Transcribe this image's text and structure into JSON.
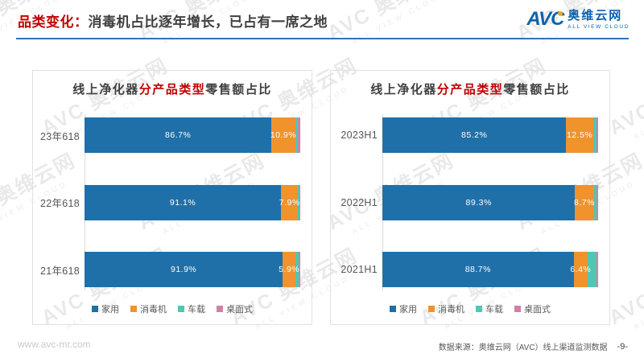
{
  "page": {
    "header": {
      "tag": "品类变化：",
      "title": "消毒机占比逐年增长，已占有一席之地",
      "tag_color": "#C00000",
      "underline_color": "#2E74B5"
    },
    "logo": {
      "acronym": "AVC",
      "cn": "奥维云网",
      "en": "ALL VIEW CLOUD",
      "blue": "#0E62AD",
      "orange": "#F5A623"
    },
    "watermark": {
      "line1": "AVC 奥维云网",
      "line2": "ALL VIEW CLOUD"
    },
    "footer": {
      "website": "www.avc-mr.com",
      "source": "数据来源：奥维云网（AVC）线上渠道监测数据",
      "page_number": "-9-"
    }
  },
  "chart_data": [
    {
      "type": "bar",
      "orientation": "horizontal-stacked",
      "title": "线上净化器分产品类型零售额占比",
      "title_parts": [
        {
          "text": "线上净化器",
          "color": "#404040"
        },
        {
          "text": "分产品类型",
          "color": "#C00000"
        },
        {
          "text": "零售额占比",
          "color": "#404040"
        }
      ],
      "categories": [
        "23年618",
        "22年618",
        "21年618"
      ],
      "series": [
        {
          "name": "家用",
          "color": "#1F70A9",
          "values": [
            86.7,
            91.1,
            91.9
          ],
          "labels": [
            "86.7%",
            "91.1%",
            "91.9%"
          ]
        },
        {
          "name": "消毒机",
          "color": "#F0932D",
          "values": [
            10.9,
            7.9,
            5.9
          ],
          "labels": [
            "10.9%",
            "7.9%",
            "5.9%"
          ]
        },
        {
          "name": "车载",
          "color": "#4FC7B2",
          "values": [
            1.2,
            0.5,
            1.4
          ]
        },
        {
          "name": "桌面式",
          "color": "#D181A5",
          "values": [
            1.2,
            0.5,
            0.8
          ]
        }
      ],
      "xlim": [
        0,
        100
      ],
      "grid": false,
      "legend_position": "bottom"
    },
    {
      "type": "bar",
      "orientation": "horizontal-stacked",
      "title": "线上净化器分产品类型零售额占比",
      "title_parts": [
        {
          "text": "线上净化器",
          "color": "#404040"
        },
        {
          "text": "分产品类型",
          "color": "#C00000"
        },
        {
          "text": "零售额占比",
          "color": "#404040"
        }
      ],
      "categories": [
        "2023H1",
        "2022H1",
        "2021H1"
      ],
      "series": [
        {
          "name": "家用",
          "color": "#1F70A9",
          "values": [
            85.2,
            89.3,
            88.7
          ],
          "labels": [
            "85.2%",
            "89.3%",
            "88.7%"
          ]
        },
        {
          "name": "消毒机",
          "color": "#F0932D",
          "values": [
            12.5,
            8.7,
            6.4
          ],
          "labels": [
            "12.5%",
            "8.7%",
            "6.4%"
          ]
        },
        {
          "name": "车载",
          "color": "#4FC7B2",
          "values": [
            1.4,
            1.2,
            4.0
          ]
        },
        {
          "name": "桌面式",
          "color": "#D181A5",
          "values": [
            0.9,
            0.8,
            0.9
          ]
        }
      ],
      "xlim": [
        0,
        100
      ],
      "grid": false,
      "legend_position": "bottom"
    }
  ]
}
